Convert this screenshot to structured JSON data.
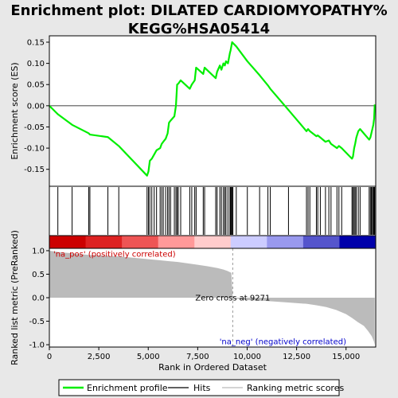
{
  "chart_data": {
    "type": "line",
    "title": "Enrichment plot: DILATED CARDIOMYOPATHY%\nKEGG%HSA05414",
    "panels": {
      "es": {
        "ylabel": "Enrichment score (ES)",
        "ylim": [
          -0.19,
          0.165
        ],
        "yticks": [
          -0.15,
          -0.1,
          -0.05,
          0.0,
          0.05,
          0.1,
          0.15
        ],
        "ytick_labels": [
          "-0.15",
          "-0.10",
          "-0.05",
          "0.00",
          "0.05",
          "0.10",
          "0.15"
        ],
        "baseline": 0.0,
        "color": "#00ee00",
        "series": {
          "name": "Enrichment profile",
          "x": [
            0,
            430,
            1150,
            1990,
            2050,
            2960,
            3510,
            4940,
            5010,
            5080,
            5180,
            5300,
            5420,
            5600,
            5680,
            5760,
            5880,
            5980,
            6050,
            6130,
            6320,
            6400,
            6460,
            6520,
            6640,
            7100,
            7200,
            7350,
            7420,
            7780,
            7850,
            8410,
            8480,
            8620,
            8700,
            8800,
            8870,
            8930,
            9030,
            9130,
            9160,
            9200,
            9240,
            9280,
            9450,
            10010,
            10630,
            11050,
            11170,
            12090,
            13000,
            13080,
            13170,
            13500,
            13570,
            13700,
            13960,
            14130,
            14240,
            14540,
            14640,
            14780,
            15300,
            15350,
            15410,
            15460,
            15520,
            15620,
            15710,
            16170,
            16230,
            16280,
            16330,
            16380,
            16420,
            16450
          ],
          "y": [
            0.0,
            -0.02,
            -0.045,
            -0.065,
            -0.068,
            -0.074,
            -0.095,
            -0.165,
            -0.155,
            -0.13,
            -0.125,
            -0.115,
            -0.105,
            -0.1,
            -0.09,
            -0.085,
            -0.078,
            -0.065,
            -0.04,
            -0.035,
            -0.025,
            0.0,
            0.05,
            0.052,
            0.06,
            0.04,
            0.05,
            0.06,
            0.09,
            0.075,
            0.09,
            0.065,
            0.08,
            0.095,
            0.085,
            0.1,
            0.095,
            0.105,
            0.1,
            0.125,
            0.13,
            0.14,
            0.15,
            0.148,
            0.14,
            0.105,
            0.072,
            0.048,
            0.04,
            -0.01,
            -0.06,
            -0.055,
            -0.06,
            -0.072,
            -0.07,
            -0.075,
            -0.085,
            -0.082,
            -0.09,
            -0.1,
            -0.095,
            -0.1,
            -0.125,
            -0.12,
            -0.1,
            -0.09,
            -0.075,
            -0.06,
            -0.055,
            -0.08,
            -0.075,
            -0.065,
            -0.055,
            -0.045,
            -0.03,
            0.003
          ]
        }
      },
      "hits": {
        "label": "Hits",
        "positions": [
          430,
          1150,
          1990,
          2050,
          2960,
          3510,
          4940,
          5010,
          5080,
          5180,
          5300,
          5420,
          5600,
          5680,
          5760,
          5880,
          5980,
          6050,
          6130,
          6320,
          6400,
          6460,
          6520,
          6640,
          7100,
          7200,
          7350,
          7420,
          7780,
          7850,
          8410,
          8480,
          8620,
          8700,
          8800,
          8870,
          8930,
          9030,
          9130,
          9160,
          9200,
          9240,
          9280,
          9450,
          10010,
          10630,
          11050,
          11170,
          12090,
          13000,
          13080,
          13170,
          13500,
          13570,
          13700,
          13960,
          14130,
          14240,
          14540,
          14640,
          14780,
          15300,
          15350,
          15410,
          15460,
          15520,
          15620,
          15710,
          16170,
          16230,
          16280,
          16330,
          16380,
          16420,
          16450
        ]
      },
      "heatmap": {
        "colors_left_to_right": [
          "#cc0000",
          "#dd2222",
          "#ee5555",
          "#ff9999",
          "#ffcccc",
          "#ccccff",
          "#9999ee",
          "#5555cc",
          "#0000aa"
        ]
      },
      "ranked": {
        "ylabel": "Ranked list metric (PreRanked)",
        "ylim": [
          -1.05,
          1.05
        ],
        "yticks": [
          1.0,
          0.5,
          0.0,
          -0.5,
          -1.0
        ],
        "ytick_labels": [
          "1.0",
          "0.5",
          "0.0",
          "-0.5",
          "-1.0"
        ],
        "fill_color": "#bbbbbb",
        "metric_curve": {
          "x": [
            0,
            500,
            1000,
            1500,
            2000,
            2500,
            3000,
            3500,
            4000,
            4500,
            5000,
            5500,
            6000,
            6500,
            7000,
            7500,
            8000,
            8500,
            8800,
            9000,
            9200,
            9271,
            9300,
            10000,
            11000,
            12000,
            13000,
            13500,
            14000,
            14500,
            15000,
            15300,
            15600,
            15900,
            16100,
            16300,
            16400,
            16450
          ],
          "y": [
            1.0,
            0.97,
            0.95,
            0.93,
            0.91,
            0.9,
            0.89,
            0.88,
            0.86,
            0.84,
            0.82,
            0.8,
            0.78,
            0.76,
            0.73,
            0.7,
            0.67,
            0.63,
            0.6,
            0.57,
            0.53,
            0.0,
            -0.01,
            -0.05,
            -0.07,
            -0.1,
            -0.13,
            -0.16,
            -0.2,
            -0.26,
            -0.35,
            -0.43,
            -0.52,
            -0.6,
            -0.7,
            -0.82,
            -0.92,
            -1.0
          ]
        },
        "zero_cross_label": "Zero cross at 9271",
        "zero_cross_x": 9271,
        "pos_label": "'na_pos' (positively correlated)",
        "neg_label": "'na_neg' (negatively correlated)"
      }
    },
    "x_axis": {
      "xlabel": "Rank in Ordered Dataset",
      "xlim": [
        0,
        16500
      ],
      "xticks": [
        0,
        2500,
        5000,
        7500,
        10000,
        12500,
        15000
      ],
      "xtick_labels": [
        "0",
        "2,500",
        "5,000",
        "7,500",
        "10,000",
        "12,500",
        "15,000"
      ]
    },
    "legend": {
      "placement": "bottom",
      "entries": [
        {
          "label": "Enrichment profile",
          "color": "#00ee00"
        },
        {
          "label": "Hits",
          "color": "#000000"
        },
        {
          "label": "Ranking metric scores",
          "color": "#bbbbbb"
        }
      ]
    }
  }
}
